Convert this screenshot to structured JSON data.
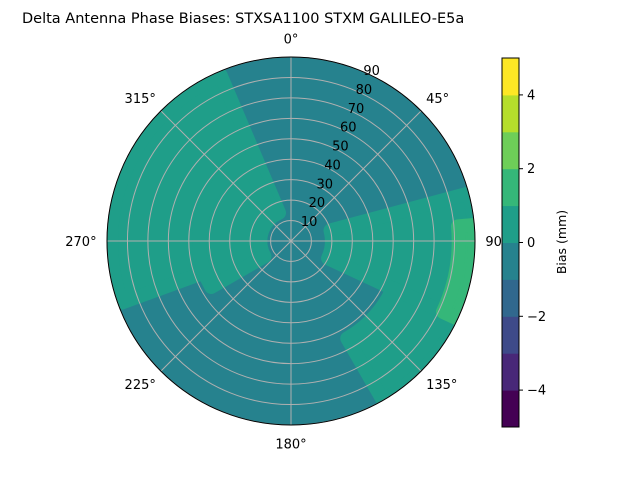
{
  "chart_data": {
    "type": "polar contour",
    "title": "Delta Antenna Phase Biases: STXSA1100        STXM GALILEO-E5a",
    "theta_ticks": [
      "0°",
      "45°",
      "90",
      "135°",
      "180°",
      "225°",
      "270°",
      "315°"
    ],
    "r_ticks": [
      "10",
      "20",
      "30",
      "40",
      "50",
      "60",
      "70",
      "80",
      "90"
    ],
    "r_max": 90,
    "colorbar": {
      "label": "Bias (mm)",
      "range": [
        -5,
        5
      ],
      "levels": [
        -5,
        -4,
        -3,
        -2,
        -1,
        0,
        1,
        2,
        3,
        4,
        5
      ],
      "ticks": [
        -4,
        -2,
        0,
        2,
        4
      ],
      "tick_labels": [
        "−4",
        "−2",
        "0",
        "2",
        "4"
      ],
      "colors": [
        "#440154",
        "#482878",
        "#3e4a89",
        "#31688e",
        "#26828e",
        "#1f9e89",
        "#35b779",
        "#6ece58",
        "#b5de2b",
        "#fde725"
      ]
    },
    "background_level_range": [
      -1,
      0
    ],
    "regions": [
      {
        "level_range": [
          0,
          1
        ],
        "description": "west/northwest lobe",
        "bounds": [
          [
            250,
            15
          ],
          [
            337,
            88
          ]
        ]
      },
      {
        "level_range": [
          0,
          1
        ],
        "description": "inner west lobe",
        "bounds": [
          [
            240,
            15
          ],
          [
            330,
            45
          ]
        ]
      },
      {
        "level_range": [
          0,
          1
        ],
        "description": "east lobe",
        "bounds": [
          [
            75,
            20
          ],
          [
            115,
            90
          ]
        ]
      },
      {
        "level_range": [
          0,
          1
        ],
        "description": "southeast lobe",
        "bounds": [
          [
            115,
            55
          ],
          [
            150,
            90
          ]
        ]
      },
      {
        "level_range": [
          1,
          2
        ],
        "description": "east patch near horizon",
        "bounds": [
          [
            85,
            82
          ],
          [
            115,
            90
          ]
        ]
      }
    ]
  }
}
